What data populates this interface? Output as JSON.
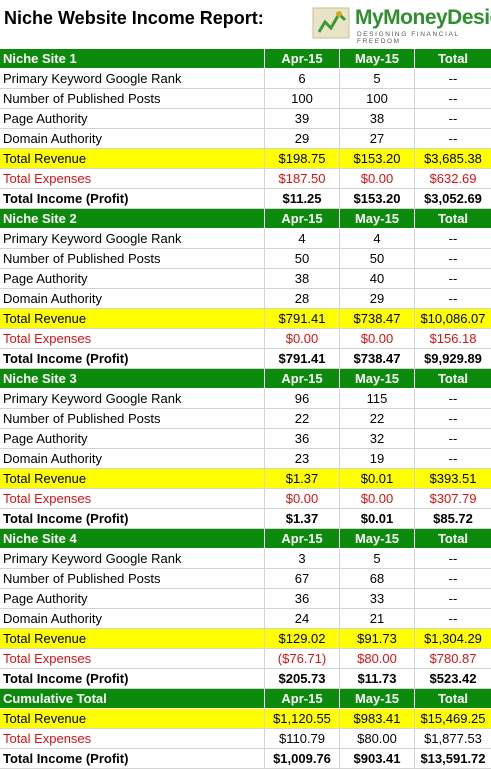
{
  "header": {
    "title": "Niche Website Income Report:",
    "logo": {
      "name": "MyMoneyDesign",
      "tagline": "DESIGNING FINANCIAL FREEDOM"
    }
  },
  "sections": [
    {
      "title": "Niche Site 1",
      "columns": [
        "Apr-15",
        "May-15",
        "Total"
      ],
      "rows": [
        [
          "Primary Keyword Google Rank",
          "6",
          "5",
          "--"
        ],
        [
          "Number of Published Posts",
          "100",
          "100",
          "--"
        ],
        [
          "Page Authority",
          "39",
          "38",
          "--"
        ],
        [
          "Domain Authority",
          "29",
          "27",
          "--"
        ],
        [
          "Total Revenue",
          "$198.75",
          "$153.20",
          "$3,685.38"
        ],
        [
          "Total Expenses",
          "$187.50",
          "$0.00",
          "$632.69"
        ],
        [
          "Total Income (Profit)",
          "$11.25",
          "$153.20",
          "$3,052.69"
        ]
      ]
    },
    {
      "title": "Niche Site 2",
      "columns": [
        "Apr-15",
        "May-15",
        "Total"
      ],
      "rows": [
        [
          "Primary Keyword Google Rank",
          "4",
          "4",
          "--"
        ],
        [
          "Number of Published Posts",
          "50",
          "50",
          "--"
        ],
        [
          "Page Authority",
          "38",
          "40",
          "--"
        ],
        [
          "Domain Authority",
          "28",
          "29",
          "--"
        ],
        [
          "Total Revenue",
          "$791.41",
          "$738.47",
          "$10,086.07"
        ],
        [
          "Total Expenses",
          "$0.00",
          "$0.00",
          "$156.18"
        ],
        [
          "Total Income (Profit)",
          "$791.41",
          "$738.47",
          "$9,929.89"
        ]
      ]
    },
    {
      "title": "Niche Site 3",
      "columns": [
        "Apr-15",
        "May-15",
        "Total"
      ],
      "rows": [
        [
          "Primary Keyword Google Rank",
          "96",
          "115",
          "--"
        ],
        [
          "Number of Published Posts",
          "22",
          "22",
          "--"
        ],
        [
          "Page Authority",
          "36",
          "32",
          "--"
        ],
        [
          "Domain Authority",
          "23",
          "19",
          "--"
        ],
        [
          "Total Revenue",
          "$1.37",
          "$0.01",
          "$393.51"
        ],
        [
          "Total Expenses",
          "$0.00",
          "$0.00",
          "$307.79"
        ],
        [
          "Total Income (Profit)",
          "$1.37",
          "$0.01",
          "$85.72"
        ]
      ]
    },
    {
      "title": "Niche Site 4",
      "columns": [
        "Apr-15",
        "May-15",
        "Total"
      ],
      "rows": [
        [
          "Primary Keyword Google Rank",
          "3",
          "5",
          "--"
        ],
        [
          "Number of Published Posts",
          "67",
          "68",
          "--"
        ],
        [
          "Page Authority",
          "36",
          "33",
          "--"
        ],
        [
          "Domain Authority",
          "24",
          "21",
          "--"
        ],
        [
          "Total Revenue",
          "$129.02",
          "$91.73",
          "$1,304.29"
        ],
        [
          "Total Expenses",
          "($76.71)",
          "$80.00",
          "$780.87"
        ],
        [
          "Total Income (Profit)",
          "$205.73",
          "$11.73",
          "$523.42"
        ]
      ]
    },
    {
      "title": "Cumulative Total",
      "columns": [
        "Apr-15",
        "May-15",
        "Total"
      ],
      "rows": [
        [
          "Total Revenue",
          "$1,120.55",
          "$983.41",
          "$15,469.25"
        ],
        [
          "Total Expenses",
          "$110.79",
          "$80.00",
          "$1,877.53"
        ],
        [
          "Total Income (Profit)",
          "$1,009.76",
          "$903.41",
          "$13,591.72"
        ]
      ]
    }
  ]
}
